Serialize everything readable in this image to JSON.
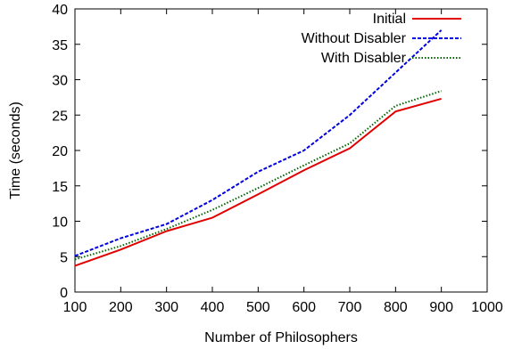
{
  "chart_data": {
    "type": "line",
    "title": "",
    "xlabel": "Number of Philosophers",
    "ylabel": "Time (seconds)",
    "xlim": [
      100,
      1000
    ],
    "ylim": [
      0,
      40
    ],
    "xticks": [
      100,
      200,
      300,
      400,
      500,
      600,
      700,
      800,
      900,
      1000
    ],
    "yticks": [
      0,
      5,
      10,
      15,
      20,
      25,
      30,
      35,
      40
    ],
    "grid": false,
    "legend_position": "top-right",
    "x": [
      100,
      200,
      300,
      400,
      500,
      600,
      700,
      800,
      900
    ],
    "series": [
      {
        "name": "Initial",
        "color": "#e00000",
        "style": "solid",
        "values": [
          3.7,
          6.0,
          8.6,
          10.5,
          13.8,
          17.2,
          20.3,
          25.5,
          27.3
        ]
      },
      {
        "name": "Without Disabler",
        "color": "#0000e0",
        "style": "dashed",
        "values": [
          5.1,
          7.6,
          9.6,
          13.0,
          17.0,
          20.0,
          25.0,
          31.0,
          37.0
        ]
      },
      {
        "name": "With Disabler",
        "color": "#006400",
        "style": "dotted",
        "values": [
          4.6,
          6.5,
          8.9,
          11.6,
          14.7,
          17.9,
          21.0,
          26.3,
          28.4
        ]
      }
    ]
  }
}
